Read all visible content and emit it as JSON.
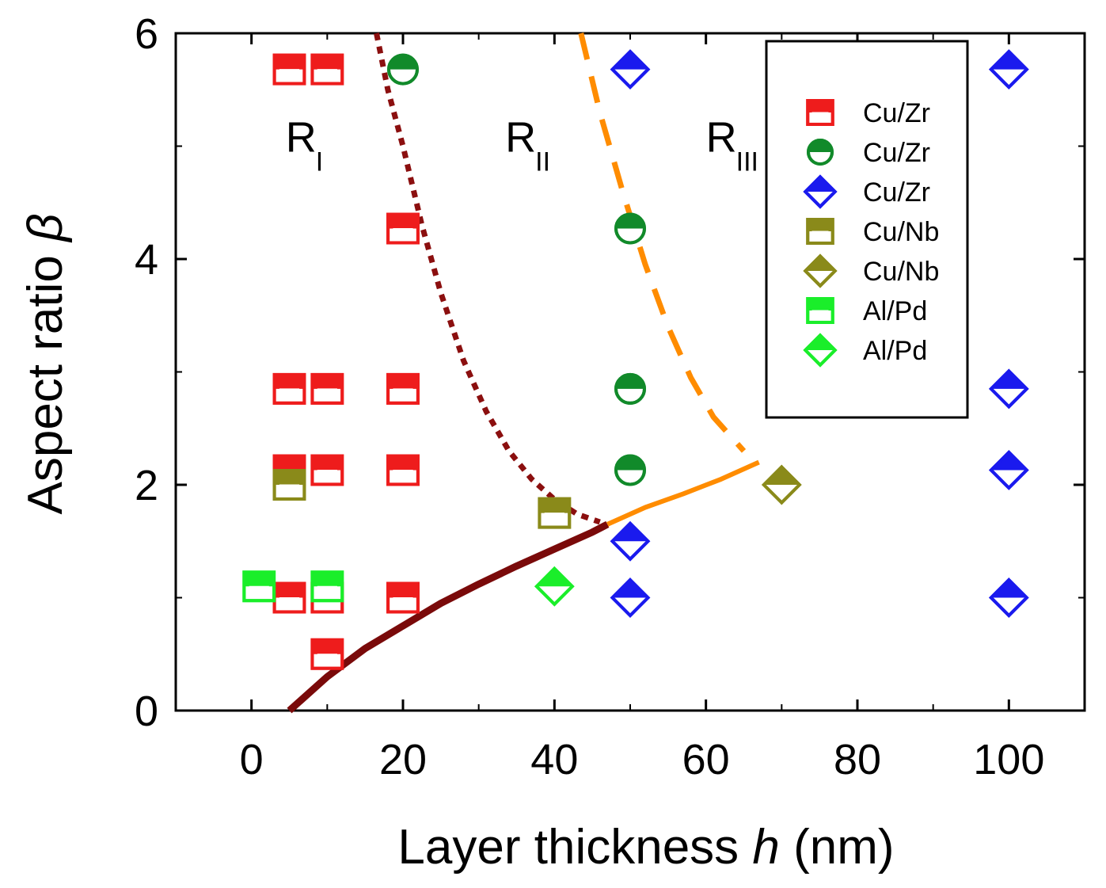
{
  "chart_data": {
    "type": "scatter",
    "title": "",
    "xlabel": "Layer thickness",
    "xlabel_var": "h",
    "xlabel_unit": "(nm)",
    "ylabel": "Aspect ratio",
    "ylabel_var": "β",
    "xlim": [
      -10,
      110
    ],
    "ylim": [
      0,
      6
    ],
    "xticks": [
      0,
      20,
      40,
      60,
      80,
      100
    ],
    "yticks": [
      0,
      2,
      4,
      6
    ],
    "xtick_labels": [
      "0",
      "20",
      "40",
      "60",
      "80",
      "100"
    ],
    "ytick_labels": [
      "0",
      "2",
      "4",
      "6"
    ],
    "legend_position": "top-right",
    "regions": [
      {
        "label": "R",
        "sub": "I",
        "x": 4.5,
        "y": 4.95
      },
      {
        "label": "R",
        "sub": "II",
        "x": 33.5,
        "y": 4.95
      },
      {
        "label": "R",
        "sub": "III",
        "x": 60,
        "y": 4.95
      }
    ],
    "series": [
      {
        "name": "Cu/Zr",
        "marker": "square",
        "color": "#ee1c1c",
        "points": [
          [
            5,
            5.68
          ],
          [
            10,
            5.68
          ],
          [
            20,
            4.27
          ],
          [
            5,
            2.85
          ],
          [
            10,
            2.85
          ],
          [
            20,
            2.85
          ],
          [
            5,
            2.13
          ],
          [
            10,
            2.13
          ],
          [
            20,
            2.13
          ],
          [
            5,
            1.0
          ],
          [
            10,
            1.0
          ],
          [
            20,
            1.0
          ],
          [
            10,
            0.5
          ]
        ]
      },
      {
        "name": "Cu/Zr",
        "marker": "circle",
        "color": "#118a2a",
        "points": [
          [
            20,
            5.68
          ],
          [
            50,
            4.27
          ],
          [
            50,
            2.85
          ],
          [
            50,
            2.13
          ]
        ]
      },
      {
        "name": "Cu/Zr",
        "marker": "diamond",
        "color": "#1a1aee",
        "points": [
          [
            50,
            5.68
          ],
          [
            100,
            5.68
          ],
          [
            100,
            2.85
          ],
          [
            100,
            2.13
          ],
          [
            50,
            1.5
          ],
          [
            50,
            1.0
          ],
          [
            100,
            1.0
          ]
        ]
      },
      {
        "name": "Cu/Nb",
        "marker": "square",
        "color": "#8a8a1a",
        "points": [
          [
            5,
            2.0
          ],
          [
            40,
            1.75
          ]
        ]
      },
      {
        "name": "Cu/Nb",
        "marker": "diamond",
        "color": "#8a8a1a",
        "points": [
          [
            70,
            2.0
          ]
        ]
      },
      {
        "name": "Al/Pd",
        "marker": "square",
        "color": "#1aee2a",
        "points": [
          [
            1,
            1.1
          ],
          [
            10,
            1.1
          ]
        ]
      },
      {
        "name": "Al/Pd",
        "marker": "diamond",
        "color": "#1aee2a",
        "points": [
          [
            40,
            1.1
          ]
        ]
      }
    ],
    "curves": [
      {
        "name": "boundary-I-II",
        "style": "dotted",
        "color": "#8b0f0f",
        "points": [
          [
            16.5,
            6.0
          ],
          [
            18,
            5.5
          ],
          [
            20,
            5.0
          ],
          [
            22.5,
            4.3
          ],
          [
            25,
            3.7
          ],
          [
            28,
            3.1
          ],
          [
            31,
            2.65
          ],
          [
            34,
            2.3
          ],
          [
            37,
            2.05
          ],
          [
            40,
            1.87
          ],
          [
            43,
            1.74
          ],
          [
            46,
            1.67
          ]
        ]
      },
      {
        "name": "lower-boundary-solid",
        "style": "solid",
        "color": "#7a0a0a",
        "points": [
          [
            5,
            0.0
          ],
          [
            10,
            0.3
          ],
          [
            15,
            0.55
          ],
          [
            20,
            0.75
          ],
          [
            25,
            0.95
          ],
          [
            30,
            1.12
          ],
          [
            35,
            1.28
          ],
          [
            40,
            1.43
          ],
          [
            45,
            1.58
          ],
          [
            47,
            1.65
          ]
        ]
      },
      {
        "name": "upper-boundary-solid",
        "style": "solid",
        "color": "#ff8c00",
        "points": [
          [
            47,
            1.65
          ],
          [
            52,
            1.8
          ],
          [
            57,
            1.92
          ],
          [
            62,
            2.05
          ],
          [
            67,
            2.2
          ]
        ]
      },
      {
        "name": "boundary-II-III",
        "style": "dashed",
        "color": "#ff8c00",
        "points": [
          [
            43.5,
            6.0
          ],
          [
            46,
            5.3
          ],
          [
            49,
            4.6
          ],
          [
            52,
            3.95
          ],
          [
            55,
            3.4
          ],
          [
            58,
            2.95
          ],
          [
            61,
            2.6
          ],
          [
            65,
            2.3
          ]
        ]
      }
    ]
  }
}
